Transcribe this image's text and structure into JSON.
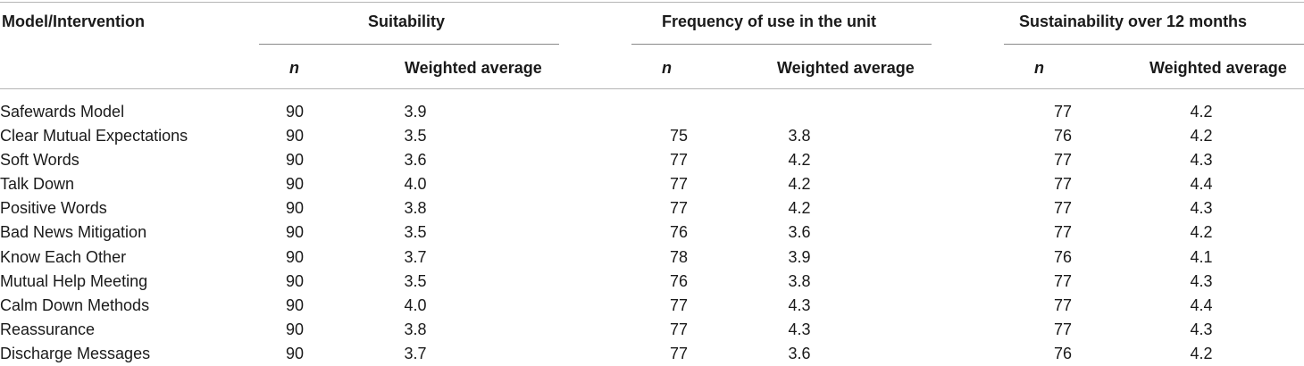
{
  "table": {
    "headers": {
      "model": "Model/Intervention",
      "group1": "Suitability",
      "group2": "Frequency of use in the unit",
      "group3": "Sustainability over 12 months"
    },
    "subheaders": {
      "n": "n",
      "weighted_average": "Weighted average"
    },
    "rows": [
      {
        "name": "Safewards Model",
        "s_n": "90",
        "s_avg": "3.9",
        "f_n": "",
        "f_avg": "",
        "u_n": "77",
        "u_avg": "4.2"
      },
      {
        "name": "Clear Mutual Expectations",
        "s_n": "90",
        "s_avg": "3.5",
        "f_n": "75",
        "f_avg": "3.8",
        "u_n": "76",
        "u_avg": "4.2"
      },
      {
        "name": "Soft Words",
        "s_n": "90",
        "s_avg": "3.6",
        "f_n": "77",
        "f_avg": "4.2",
        "u_n": "77",
        "u_avg": "4.3"
      },
      {
        "name": "Talk Down",
        "s_n": "90",
        "s_avg": "4.0",
        "f_n": "77",
        "f_avg": "4.2",
        "u_n": "77",
        "u_avg": "4.4"
      },
      {
        "name": "Positive Words",
        "s_n": "90",
        "s_avg": "3.8",
        "f_n": "77",
        "f_avg": "4.2",
        "u_n": "77",
        "u_avg": "4.3"
      },
      {
        "name": "Bad News Mitigation",
        "s_n": "90",
        "s_avg": "3.5",
        "f_n": "76",
        "f_avg": "3.6",
        "u_n": "77",
        "u_avg": "4.2"
      },
      {
        "name": "Know Each Other",
        "s_n": "90",
        "s_avg": "3.7",
        "f_n": "78",
        "f_avg": "3.9",
        "u_n": "76",
        "u_avg": "4.1"
      },
      {
        "name": "Mutual Help Meeting",
        "s_n": "90",
        "s_avg": "3.5",
        "f_n": "76",
        "f_avg": "3.8",
        "u_n": "77",
        "u_avg": "4.3"
      },
      {
        "name": "Calm Down Methods",
        "s_n": "90",
        "s_avg": "4.0",
        "f_n": "77",
        "f_avg": "4.3",
        "u_n": "77",
        "u_avg": "4.4"
      },
      {
        "name": "Reassurance",
        "s_n": "90",
        "s_avg": "3.8",
        "f_n": "77",
        "f_avg": "4.3",
        "u_n": "77",
        "u_avg": "4.3"
      },
      {
        "name": "Discharge Messages",
        "s_n": "90",
        "s_avg": "3.7",
        "f_n": "77",
        "f_avg": "3.6",
        "u_n": "76",
        "u_avg": "4.2"
      }
    ]
  }
}
